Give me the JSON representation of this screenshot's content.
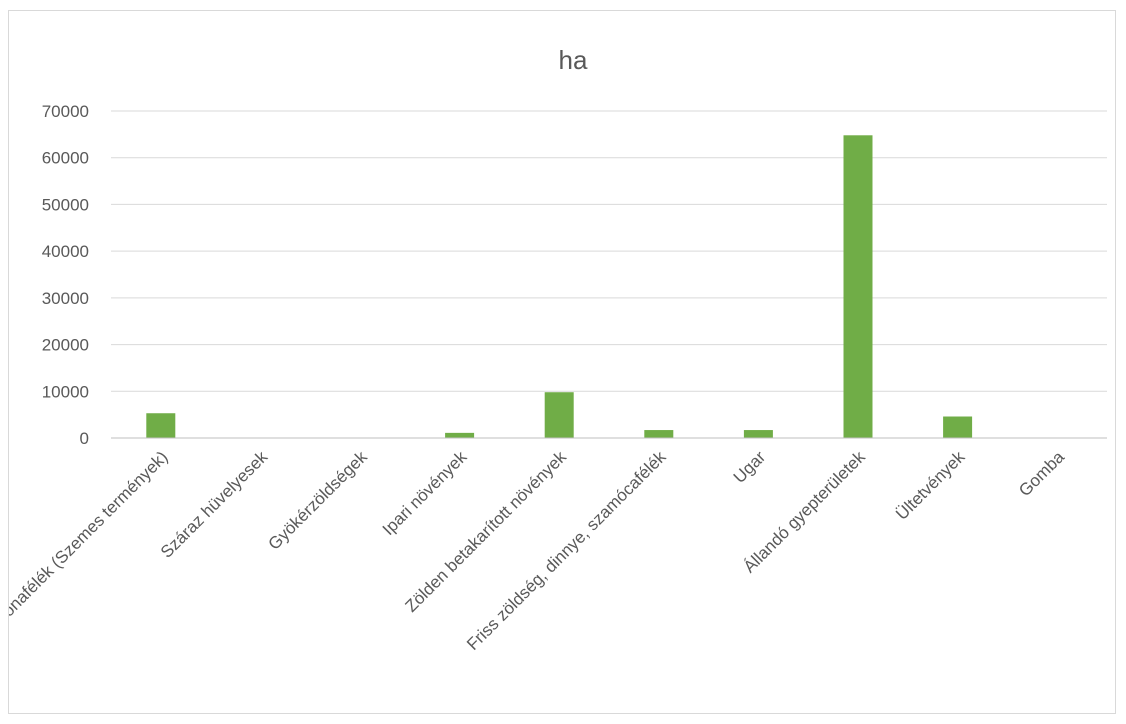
{
  "chart_data": {
    "type": "bar",
    "title": "ha",
    "xlabel": "",
    "ylabel": "",
    "categories": [
      "Gabonafélék (Szemes termények)",
      "Száraz hüvelyesek",
      "Gyökérzöldségek",
      "Ipari növények",
      "Zölden betakarított növények",
      "Friss zöldség, dinnye, szamócafélék",
      "Ugar",
      "Állandó gyepterületek",
      "Ültetvények",
      "Gomba"
    ],
    "values": [
      5300,
      0,
      0,
      1100,
      9800,
      1700,
      1700,
      64800,
      4600,
      0
    ],
    "ylim": [
      0,
      70000
    ],
    "yticks": [
      "0",
      "10000",
      "20000",
      "30000",
      "40000",
      "50000",
      "60000",
      "70000"
    ],
    "grid": true,
    "legend": "none",
    "colors": {
      "bar": "#70ad47",
      "text": "#595959",
      "grid": "#d9d9d9"
    }
  }
}
